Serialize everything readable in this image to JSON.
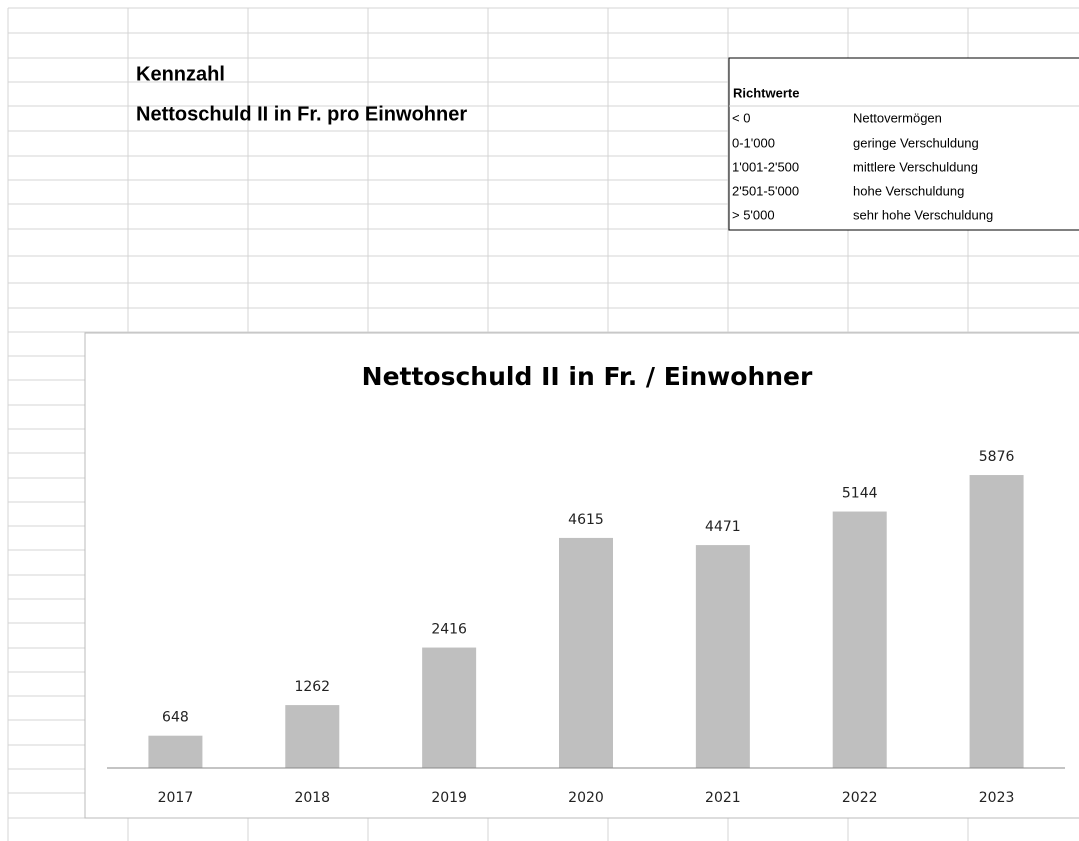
{
  "sheet": {
    "heading": [
      "Kennzahl",
      "Nettoschuld II in Fr. pro Einwohner"
    ],
    "richtwerte": {
      "title": "Richtwerte",
      "rows": [
        [
          "< 0",
          "Nettovermögen"
        ],
        [
          "0-1'000",
          "geringe Verschuldung"
        ],
        [
          "1'001-2'500",
          "mittlere Verschuldung"
        ],
        [
          "2'501-5'000",
          "hohe Verschuldung"
        ],
        [
          "> 5'000",
          "sehr hohe Verschuldung"
        ]
      ]
    }
  },
  "chart_data": {
    "type": "bar",
    "title": "Nettoschuld II in Fr. / Einwohner",
    "categories": [
      "2017",
      "2018",
      "2019",
      "2020",
      "2021",
      "2022",
      "2023"
    ],
    "values": [
      648,
      1262,
      2416,
      4615,
      4471,
      5144,
      5876
    ],
    "color": "#bfbfbf",
    "ylim": [
      0,
      7000
    ]
  }
}
